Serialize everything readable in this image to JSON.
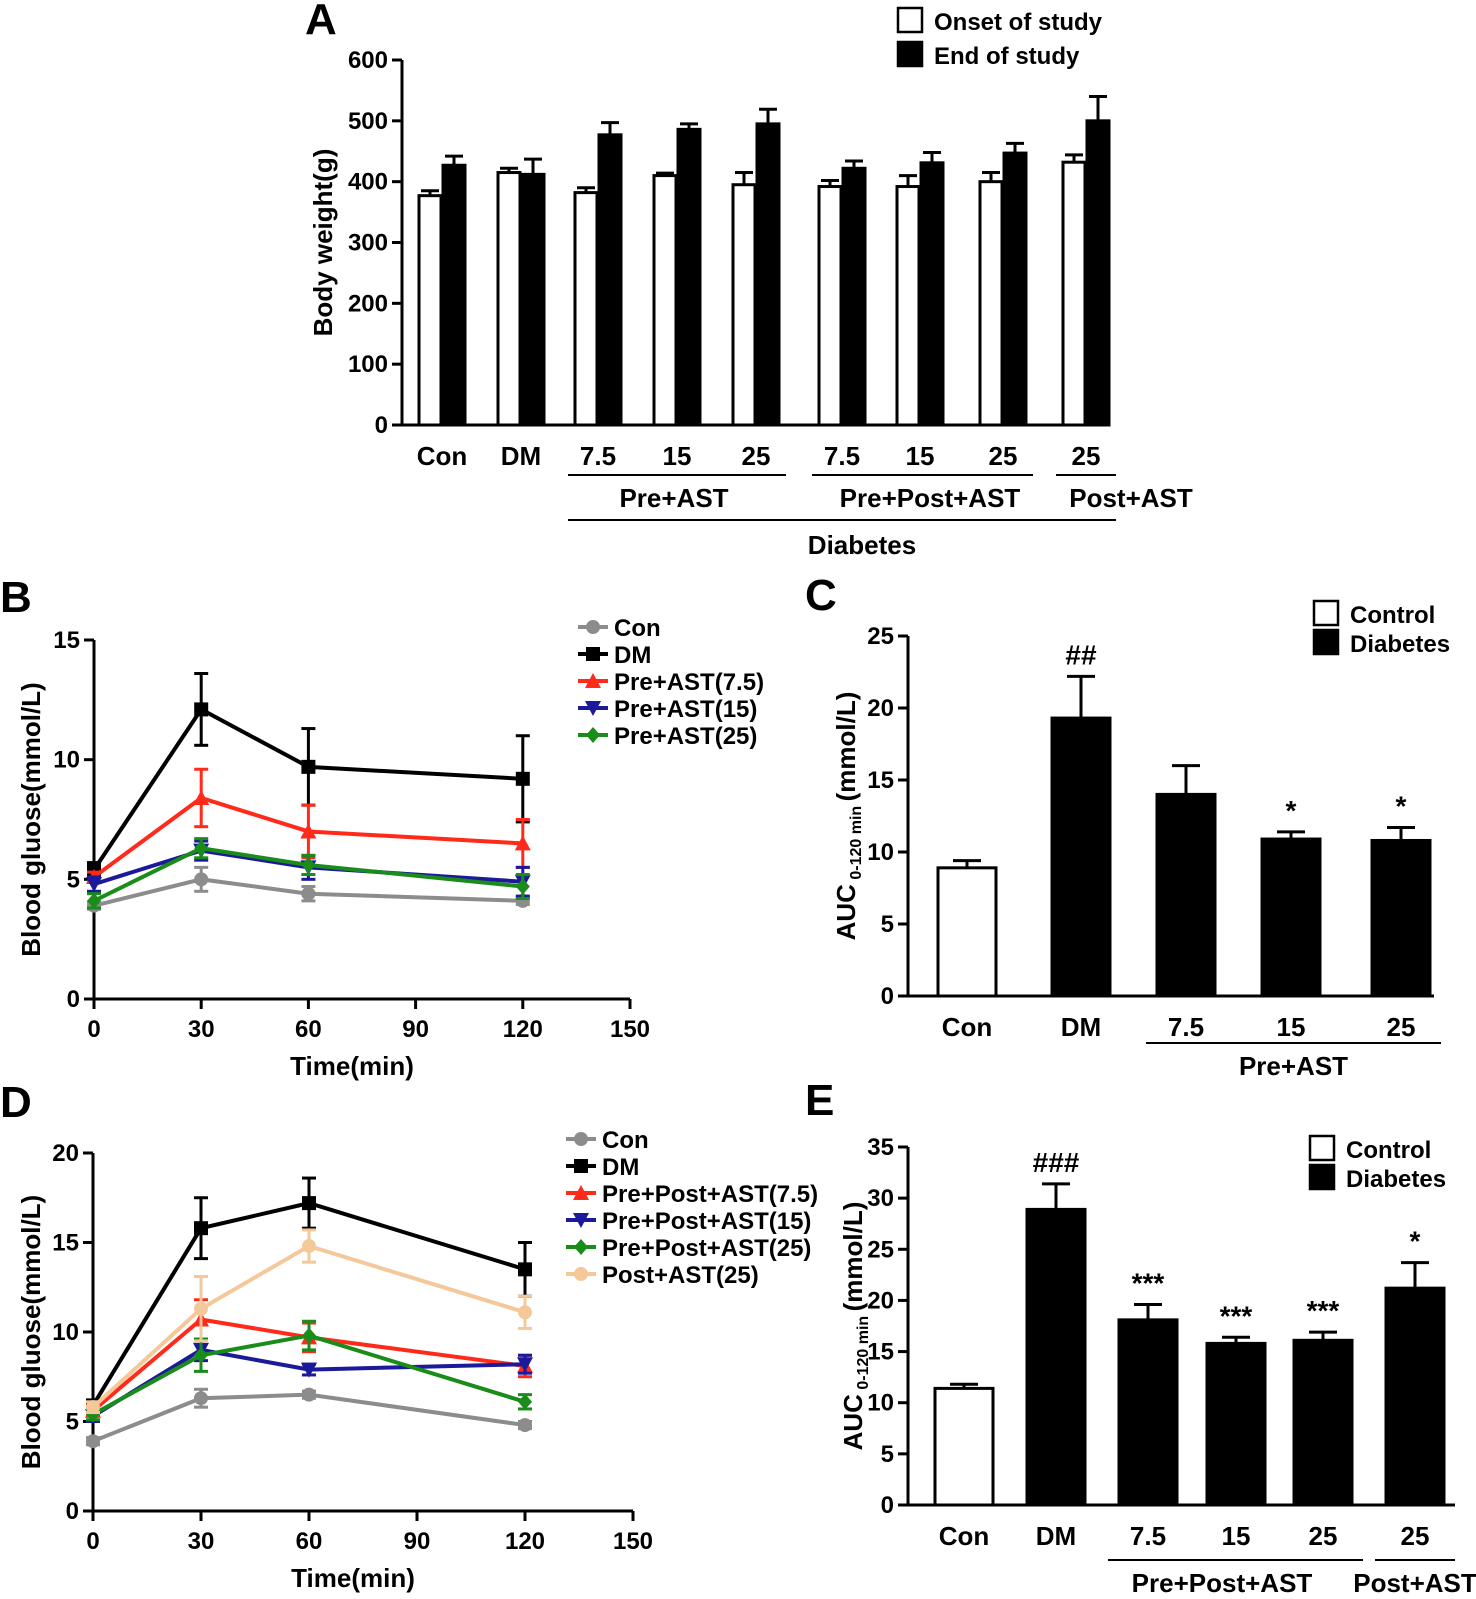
{
  "chart_data": [
    {
      "panel": "A",
      "type": "bar",
      "ylabel": "Body weight(g)",
      "ylim": [
        0,
        600
      ],
      "yticks": [
        "0",
        "100",
        "200",
        "300",
        "400",
        "500",
        "600"
      ],
      "categories": [
        "Con",
        "DM",
        "7.5",
        "15",
        "25",
        "7.5",
        "15",
        "25",
        "25"
      ],
      "series": [
        {
          "name": "Onset of study",
          "color": "#ffffff",
          "values": [
            377,
            415,
            382,
            410,
            395,
            392,
            392,
            400,
            432
          ],
          "errors": [
            8,
            7,
            8,
            4,
            20,
            10,
            18,
            15,
            12
          ]
        },
        {
          "name": "End of study",
          "color": "#000000",
          "values": [
            427,
            412,
            477,
            486,
            495,
            422,
            431,
            447,
            500
          ],
          "errors": [
            15,
            25,
            20,
            9,
            24,
            12,
            17,
            16,
            40
          ]
        }
      ],
      "groups": [
        {
          "label": "Pre+AST",
          "from": 2,
          "to": 4
        },
        {
          "label": "Pre+Post+AST",
          "from": 5,
          "to": 7
        },
        {
          "label": "Post+AST",
          "from": 8,
          "to": 8
        }
      ],
      "supergroup": {
        "label": "Diabetes",
        "from": 2,
        "to": 8
      }
    },
    {
      "panel": "B",
      "type": "line",
      "xlabel": "Time(min)",
      "ylabel": "Blood gluose(mmol/L)",
      "xlim": [
        0,
        150
      ],
      "ylim": [
        0,
        15
      ],
      "xticks": [
        "0",
        "30",
        "60",
        "90",
        "120",
        "150"
      ],
      "yticks": [
        "0",
        "5",
        "10",
        "15"
      ],
      "x": [
        0,
        30,
        60,
        120
      ],
      "series": [
        {
          "name": "Con",
          "color": "#8c8c8c",
          "marker": "circle",
          "values": [
            3.9,
            5.0,
            4.4,
            4.1
          ],
          "errors": [
            0.15,
            0.5,
            0.3,
            0.15
          ]
        },
        {
          "name": "DM",
          "color": "#000000",
          "marker": "square",
          "values": [
            5.4,
            12.1,
            9.7,
            9.2
          ],
          "errors": [
            0.3,
            1.5,
            1.6,
            1.8
          ]
        },
        {
          "name": "Pre+AST(7.5)",
          "color": "#ff2a1a",
          "marker": "triangle-up",
          "values": [
            5.1,
            8.4,
            7.0,
            6.5
          ],
          "errors": [
            0.2,
            1.2,
            1.1,
            1.0
          ]
        },
        {
          "name": "Pre+AST(15)",
          "color": "#1a1a9a",
          "marker": "triangle-down",
          "values": [
            4.8,
            6.2,
            5.5,
            4.9
          ],
          "errors": [
            0.3,
            0.4,
            0.5,
            0.6
          ]
        },
        {
          "name": "Pre+AST(25)",
          "color": "#1a8c1a",
          "marker": "diamond",
          "values": [
            4.1,
            6.3,
            5.6,
            4.7
          ],
          "errors": [
            0.3,
            0.4,
            0.4,
            0.5
          ]
        }
      ]
    },
    {
      "panel": "C",
      "type": "bar",
      "ylabel_main": "AUC",
      "ylabel_sub": "0-120 min",
      "ylabel_unit": "(mmol/L)",
      "ylim": [
        0,
        25
      ],
      "yticks": [
        "0",
        "5",
        "10",
        "15",
        "20",
        "25"
      ],
      "categories": [
        "Con",
        "DM",
        "7.5",
        "15",
        "25"
      ],
      "values": [
        8.9,
        19.3,
        14.0,
        10.9,
        10.8
      ],
      "errors": [
        0.5,
        2.9,
        2.0,
        0.5,
        0.9
      ],
      "fills": [
        "#ffffff",
        "#000000",
        "#000000",
        "#000000",
        "#000000"
      ],
      "annotations": [
        "",
        "##",
        "",
        "*",
        "*"
      ],
      "legend": [
        {
          "label": "Control",
          "color": "#ffffff"
        },
        {
          "label": "Diabetes",
          "color": "#000000"
        }
      ],
      "groups": [
        {
          "label": "Pre+AST",
          "from": 2,
          "to": 4
        }
      ]
    },
    {
      "panel": "D",
      "type": "line",
      "xlabel": "Time(min)",
      "ylabel": "Blood gluose(mmol/L)",
      "xlim": [
        0,
        150
      ],
      "ylim": [
        0,
        20
      ],
      "xticks": [
        "0",
        "30",
        "60",
        "90",
        "120",
        "150"
      ],
      "yticks": [
        "0",
        "5",
        "10",
        "15",
        "20"
      ],
      "x": [
        0,
        30,
        60,
        120
      ],
      "series": [
        {
          "name": "Con",
          "color": "#8c8c8c",
          "marker": "circle",
          "values": [
            3.9,
            6.3,
            6.5,
            4.8
          ],
          "errors": [
            0.2,
            0.5,
            0.2,
            0.2
          ]
        },
        {
          "name": "DM",
          "color": "#000000",
          "marker": "square",
          "values": [
            5.9,
            15.8,
            17.2,
            13.5
          ],
          "errors": [
            0.3,
            1.7,
            1.4,
            1.5
          ]
        },
        {
          "name": "Pre+Post+AST(7.5)",
          "color": "#ff2a1a",
          "marker": "triangle-up",
          "values": [
            5.6,
            10.7,
            9.7,
            8.1
          ],
          "errors": [
            0.3,
            1.1,
            0.8,
            0.6
          ]
        },
        {
          "name": "Pre+Post+AST(15)",
          "color": "#1a1a9a",
          "marker": "triangle-down",
          "values": [
            5.3,
            9.0,
            7.9,
            8.2
          ],
          "errors": [
            0.3,
            0.6,
            0.3,
            0.5
          ]
        },
        {
          "name": "Pre+Post+AST(25)",
          "color": "#1a8c1a",
          "marker": "diamond",
          "values": [
            5.4,
            8.7,
            9.8,
            6.1
          ],
          "errors": [
            0.3,
            0.9,
            0.8,
            0.4
          ]
        },
        {
          "name": "Post+AST(25)",
          "color": "#f5c89a",
          "marker": "circle",
          "values": [
            5.8,
            11.3,
            14.8,
            11.1
          ],
          "errors": [
            0.3,
            1.8,
            0.9,
            0.9
          ]
        }
      ]
    },
    {
      "panel": "E",
      "type": "bar",
      "ylabel_main": "AUC",
      "ylabel_sub": "0-120 min",
      "ylabel_unit": "(mmol/L)",
      "ylim": [
        0,
        35
      ],
      "yticks": [
        "0",
        "5",
        "10",
        "15",
        "20",
        "25",
        "30",
        "35"
      ],
      "categories": [
        "Con",
        "DM",
        "7.5",
        "15",
        "25",
        "25"
      ],
      "values": [
        11.4,
        28.9,
        18.1,
        15.8,
        16.1,
        21.2
      ],
      "errors": [
        0.4,
        2.5,
        1.5,
        0.6,
        0.8,
        2.5
      ],
      "fills": [
        "#ffffff",
        "#000000",
        "#000000",
        "#000000",
        "#000000",
        "#000000"
      ],
      "annotations": [
        "",
        "###",
        "***",
        "***",
        "***",
        "*"
      ],
      "legend": [
        {
          "label": "Control",
          "color": "#ffffff"
        },
        {
          "label": "Diabetes",
          "color": "#000000"
        }
      ],
      "groups": [
        {
          "label": "Pre+Post+AST",
          "from": 2,
          "to": 4
        },
        {
          "label": "Post+AST",
          "from": 5,
          "to": 5
        }
      ]
    }
  ]
}
